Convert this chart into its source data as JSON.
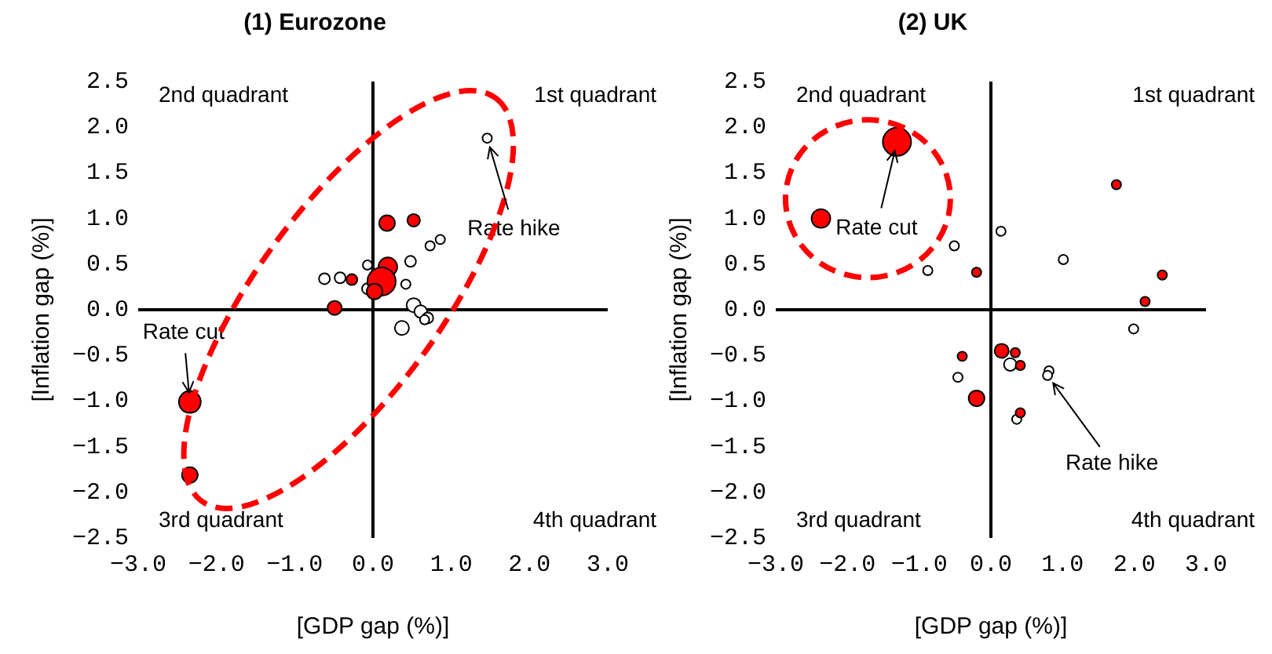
{
  "chart_data": [
    {
      "type": "bubble",
      "title": "(1) Eurozone",
      "xlabel": "[GDP gap (%)]",
      "ylabel": "[Inflation gap (%)]",
      "xlim": [
        -3,
        3
      ],
      "ylim": [
        -2.5,
        2.5
      ],
      "xticks": [
        {
          "value": -3,
          "label": "−3.0"
        },
        {
          "value": -2,
          "label": "−2.0"
        },
        {
          "value": -1,
          "label": "−1.0"
        },
        {
          "value": 0,
          "label": "0.0"
        },
        {
          "value": 1,
          "label": "1.0"
        },
        {
          "value": 2,
          "label": "2.0"
        },
        {
          "value": 3,
          "label": "3.0"
        }
      ],
      "yticks": [
        {
          "value": -2.5,
          "label": "−2.5"
        },
        {
          "value": -2,
          "label": "−2.0"
        },
        {
          "value": -1.5,
          "label": "−1.5"
        },
        {
          "value": -1,
          "label": "−1.0"
        },
        {
          "value": -0.5,
          "label": "−0.5"
        },
        {
          "value": 0,
          "label": "0.0"
        },
        {
          "value": 0.5,
          "label": "0.5"
        },
        {
          "value": 1,
          "label": "1.0"
        },
        {
          "value": 1.5,
          "label": "1.5"
        },
        {
          "value": 2,
          "label": "2.0"
        },
        {
          "value": 2.5,
          "label": "2.5"
        }
      ],
      "series": [
        {
          "color": "#ff0000",
          "x": [
            -2.34,
            -2.34,
            -0.49,
            -0.27,
            0.18,
            0.52,
            0.19,
            0.11,
            0.02
          ],
          "values": [
            -1.01,
            -1.81,
            0.02,
            0.33,
            0.95,
            0.98,
            0.47,
            0.31,
            0.2
          ],
          "sizes": [
            0.6,
            0.31,
            0.25,
            0.15,
            0.31,
            0.2,
            0.44,
            1,
            0.31
          ]
        },
        {
          "color": "#ffffff",
          "x": [
            1.46,
            0.86,
            0.73,
            0.48,
            0.42,
            -0.07,
            -0.62,
            -0.42,
            -0.07,
            0.52,
            0.61,
            0.7,
            0.66,
            0.37
          ],
          "values": [
            1.88,
            0.77,
            0.7,
            0.53,
            0.28,
            0.49,
            0.34,
            0.35,
            0.23,
            0.05,
            -0.02,
            -0.09,
            -0.11,
            -0.2
          ],
          "sizes": [
            0.11,
            0.11,
            0.11,
            0.15,
            0.11,
            0.11,
            0.15,
            0.15,
            0.15,
            0.25,
            0.2,
            0.15,
            0.11,
            0.25
          ]
        }
      ],
      "annotations": [
        "2nd quadrant",
        "1st quadrant",
        "3rd quadrant",
        "4th quadrant",
        {
          "text": "Rate cut",
          "x": -2.34,
          "y": -1.01
        },
        {
          "text": "Rate hike",
          "x": 1.46,
          "y": 1.88
        }
      ]
    },
    {
      "type": "bubble",
      "title": "(2) UK",
      "xlabel": "[GDP gap (%)]",
      "ylabel": "[Inflation gap (%)]",
      "xlim": [
        -3,
        3
      ],
      "ylim": [
        -2.5,
        2.5
      ],
      "xticks": [
        {
          "value": -3,
          "label": "−3.0"
        },
        {
          "value": -2,
          "label": "−2.0"
        },
        {
          "value": -1,
          "label": "−1.0"
        },
        {
          "value": 0,
          "label": "0.0"
        },
        {
          "value": 1,
          "label": "1.0"
        },
        {
          "value": 2,
          "label": "2.0"
        },
        {
          "value": 3,
          "label": "3.0"
        }
      ],
      "yticks": [
        {
          "value": -2.5,
          "label": "−2.5"
        },
        {
          "value": -2,
          "label": "−2.0"
        },
        {
          "value": -1.5,
          "label": "−1.5"
        },
        {
          "value": -1,
          "label": "−1.0"
        },
        {
          "value": -0.5,
          "label": "−0.5"
        },
        {
          "value": 0,
          "label": "0.0"
        },
        {
          "value": 0.5,
          "label": "0.5"
        },
        {
          "value": 1,
          "label": "1.0"
        },
        {
          "value": 1.5,
          "label": "1.5"
        },
        {
          "value": 2,
          "label": "2.0"
        },
        {
          "value": 2.5,
          "label": "2.5"
        }
      ],
      "series": [
        {
          "color": "#ff0000",
          "x": [
            -1.31,
            -2.37,
            1.75,
            2.39,
            2.15,
            -0.2,
            -0.4,
            0.15,
            0.34,
            0.41,
            -0.2,
            0.41
          ],
          "values": [
            1.84,
            1.0,
            1.37,
            0.38,
            0.09,
            0.41,
            -0.51,
            -0.45,
            -0.47,
            -0.61,
            -0.97,
            -1.13
          ],
          "sizes": [
            1,
            0.44,
            0.11,
            0.11,
            0.11,
            0.11,
            0.11,
            0.25,
            0.11,
            0.11,
            0.31,
            0.11
          ]
        },
        {
          "color": "#ffffff",
          "x": [
            0.14,
            1.01,
            -0.51,
            -0.88,
            1.99,
            -0.46,
            0.27,
            0.81,
            0.79,
            0.36
          ],
          "values": [
            0.86,
            0.55,
            0.7,
            0.43,
            -0.21,
            -0.74,
            -0.6,
            -0.67,
            -0.72,
            -1.2
          ],
          "sizes": [
            0.11,
            0.11,
            0.11,
            0.11,
            0.11,
            0.11,
            0.2,
            0.11,
            0.11,
            0.11
          ]
        }
      ],
      "annotations": [
        "2nd quadrant",
        "1st quadrant",
        "3rd quadrant",
        "4th quadrant",
        {
          "text": "Rate cut",
          "x": -1.31,
          "y": 1.84
        },
        {
          "text": "Rate hike",
          "x": 0.79,
          "y": -0.72
        }
      ]
    }
  ]
}
